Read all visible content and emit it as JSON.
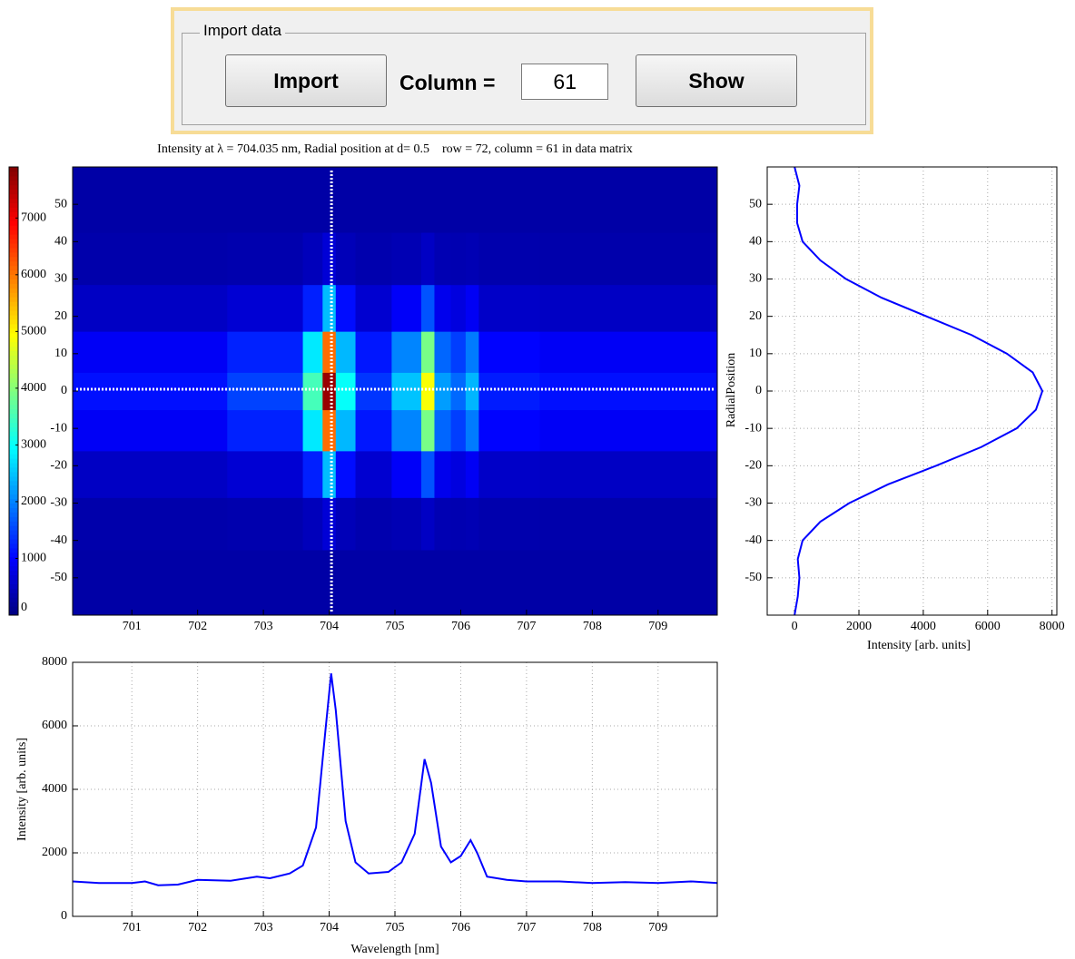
{
  "panel": {
    "title": "Import data",
    "import_button": "Import",
    "column_label": "Column =",
    "column_value": "61",
    "show_button": "Show"
  },
  "chart_data": [
    {
      "type": "heatmap",
      "title": "Intensity at λ = 704.035 nm, Radial position at d= 0.5    row = 72, column = 61 in data matrix",
      "x": [
        701.5,
        703.4,
        703.8,
        704.0,
        704.2,
        704.6,
        705.3,
        705.5,
        705.7,
        706.0,
        706.15,
        706.4,
        708
      ],
      "y": [
        -50,
        -35,
        -22,
        -10,
        0,
        10,
        22,
        35,
        50
      ],
      "z": [
        [
          300,
          300,
          300,
          300,
          300,
          300,
          300,
          300,
          300,
          300,
          300,
          300,
          300
        ],
        [
          340,
          360,
          460,
          670,
          440,
          360,
          410,
          530,
          400,
          380,
          410,
          350,
          340
        ],
        [
          530,
          650,
          1230,
          2450,
          1080,
          620,
          940,
          1630,
          850,
          740,
          910,
          560,
          530
        ],
        [
          920,
          1240,
          2800,
          6070,
          2410,
          1160,
          2020,
          3890,
          1780,
          1470,
          1940,
          1000,
          920
        ],
        [
          1100,
          1500,
          3500,
          7700,
          3000,
          1400,
          2500,
          4900,
          2200,
          1800,
          2400,
          1200,
          1100
        ],
        [
          920,
          1240,
          2800,
          6070,
          2410,
          1160,
          2020,
          3890,
          1780,
          1470,
          1940,
          1000,
          920
        ],
        [
          530,
          650,
          1230,
          2450,
          1080,
          620,
          940,
          1630,
          850,
          740,
          910,
          560,
          530
        ],
        [
          340,
          360,
          460,
          670,
          440,
          360,
          410,
          530,
          400,
          380,
          410,
          350,
          340
        ],
        [
          300,
          300,
          300,
          300,
          300,
          300,
          300,
          300,
          300,
          300,
          300,
          300,
          300
        ]
      ],
      "xlim": [
        700.1,
        709.9
      ],
      "ylim": [
        -60,
        60
      ],
      "xticks": [
        701,
        702,
        703,
        704,
        705,
        706,
        707,
        708,
        709
      ],
      "yticks": [
        -50,
        -40,
        -30,
        -20,
        -10,
        0,
        10,
        20,
        30,
        40,
        50
      ],
      "clim": [
        0,
        7900
      ],
      "cticks": [
        0,
        1000,
        2000,
        3000,
        4000,
        5000,
        6000,
        7000
      ],
      "colormap": "jet",
      "crosshair": {
        "x": 704.035,
        "y": 0.5,
        "color": "#ffffff"
      },
      "grid": false
    },
    {
      "type": "line",
      "orientation": "horizontal",
      "color": "#0000ff",
      "y": [
        -60,
        -55,
        -50,
        -45,
        -40,
        -35,
        -30,
        -25,
        -20,
        -15,
        -10,
        -5,
        0,
        5,
        10,
        15,
        20,
        25,
        30,
        35,
        40,
        45,
        50,
        55,
        60
      ],
      "values": [
        0,
        100,
        150,
        100,
        250,
        800,
        1700,
        2900,
        4400,
        5800,
        6900,
        7500,
        7700,
        7400,
        6600,
        5500,
        4100,
        2700,
        1600,
        800,
        250,
        80,
        80,
        150,
        0
      ],
      "xlim": [
        -850,
        8150
      ],
      "ylim": [
        -60,
        60
      ],
      "xticks": [
        0,
        2000,
        4000,
        6000,
        8000
      ],
      "yticks": [
        -50,
        -40,
        -30,
        -20,
        -10,
        0,
        10,
        20,
        30,
        40,
        50
      ],
      "xlabel": "Intensity [arb. units]",
      "ylabel": "RadialPosition",
      "grid": true
    },
    {
      "type": "line",
      "orientation": "vertical",
      "color": "#0000ff",
      "x": [
        700.1,
        700.5,
        701,
        701.2,
        701.4,
        701.7,
        702,
        702.5,
        702.9,
        703.1,
        703.4,
        703.6,
        703.8,
        703.95,
        704.03,
        704.1,
        704.25,
        704.4,
        704.6,
        704.9,
        705.1,
        705.3,
        705.45,
        705.55,
        705.7,
        705.85,
        706.0,
        706.15,
        706.25,
        706.4,
        706.7,
        707,
        707.5,
        708,
        708.5,
        709,
        709.5,
        709.9
      ],
      "values": [
        1100,
        1050,
        1050,
        1100,
        980,
        1000,
        1150,
        1120,
        1250,
        1200,
        1350,
        1600,
        2800,
        6000,
        7650,
        6500,
        3000,
        1700,
        1350,
        1400,
        1700,
        2600,
        4950,
        4200,
        2200,
        1700,
        1900,
        2400,
        2000,
        1250,
        1150,
        1100,
        1100,
        1050,
        1080,
        1050,
        1100,
        1050
      ],
      "xlim": [
        700.1,
        709.9
      ],
      "ylim": [
        0,
        8000
      ],
      "xticks": [
        701,
        702,
        703,
        704,
        705,
        706,
        707,
        708,
        709
      ],
      "yticks": [
        0,
        2000,
        4000,
        6000,
        8000
      ],
      "xlabel": "Wavelength [nm]",
      "ylabel": "Intensity [arb. units]",
      "grid": true
    }
  ]
}
